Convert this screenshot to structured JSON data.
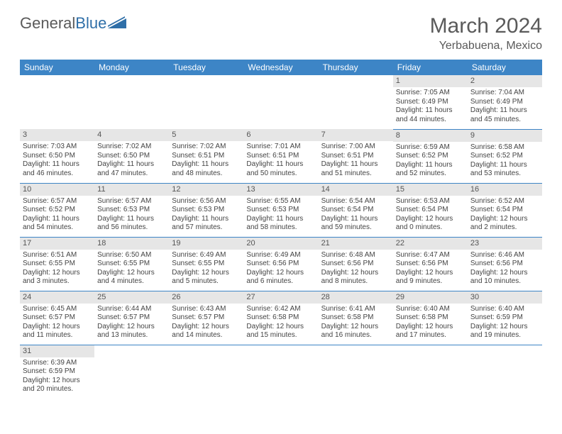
{
  "logo": {
    "text_gray": "General",
    "text_blue": "Blue"
  },
  "title": "March 2024",
  "location": "Yerbabuena, Mexico",
  "colors": {
    "header_bg": "#3d85c6",
    "header_text": "#ffffff",
    "daynum_bg": "#e6e6e6",
    "row_border": "#3d85c6",
    "logo_gray": "#5a5a5a",
    "logo_blue": "#2f6fa8"
  },
  "day_headers": [
    "Sunday",
    "Monday",
    "Tuesday",
    "Wednesday",
    "Thursday",
    "Friday",
    "Saturday"
  ],
  "weeks": [
    [
      null,
      null,
      null,
      null,
      null,
      {
        "n": "1",
        "sunrise": "7:05 AM",
        "sunset": "6:49 PM",
        "daylight": "11 hours and 44 minutes."
      },
      {
        "n": "2",
        "sunrise": "7:04 AM",
        "sunset": "6:49 PM",
        "daylight": "11 hours and 45 minutes."
      }
    ],
    [
      {
        "n": "3",
        "sunrise": "7:03 AM",
        "sunset": "6:50 PM",
        "daylight": "11 hours and 46 minutes."
      },
      {
        "n": "4",
        "sunrise": "7:02 AM",
        "sunset": "6:50 PM",
        "daylight": "11 hours and 47 minutes."
      },
      {
        "n": "5",
        "sunrise": "7:02 AM",
        "sunset": "6:51 PM",
        "daylight": "11 hours and 48 minutes."
      },
      {
        "n": "6",
        "sunrise": "7:01 AM",
        "sunset": "6:51 PM",
        "daylight": "11 hours and 50 minutes."
      },
      {
        "n": "7",
        "sunrise": "7:00 AM",
        "sunset": "6:51 PM",
        "daylight": "11 hours and 51 minutes."
      },
      {
        "n": "8",
        "sunrise": "6:59 AM",
        "sunset": "6:52 PM",
        "daylight": "11 hours and 52 minutes."
      },
      {
        "n": "9",
        "sunrise": "6:58 AM",
        "sunset": "6:52 PM",
        "daylight": "11 hours and 53 minutes."
      }
    ],
    [
      {
        "n": "10",
        "sunrise": "6:57 AM",
        "sunset": "6:52 PM",
        "daylight": "11 hours and 54 minutes."
      },
      {
        "n": "11",
        "sunrise": "6:57 AM",
        "sunset": "6:53 PM",
        "daylight": "11 hours and 56 minutes."
      },
      {
        "n": "12",
        "sunrise": "6:56 AM",
        "sunset": "6:53 PM",
        "daylight": "11 hours and 57 minutes."
      },
      {
        "n": "13",
        "sunrise": "6:55 AM",
        "sunset": "6:53 PM",
        "daylight": "11 hours and 58 minutes."
      },
      {
        "n": "14",
        "sunrise": "6:54 AM",
        "sunset": "6:54 PM",
        "daylight": "11 hours and 59 minutes."
      },
      {
        "n": "15",
        "sunrise": "6:53 AM",
        "sunset": "6:54 PM",
        "daylight": "12 hours and 0 minutes."
      },
      {
        "n": "16",
        "sunrise": "6:52 AM",
        "sunset": "6:54 PM",
        "daylight": "12 hours and 2 minutes."
      }
    ],
    [
      {
        "n": "17",
        "sunrise": "6:51 AM",
        "sunset": "6:55 PM",
        "daylight": "12 hours and 3 minutes."
      },
      {
        "n": "18",
        "sunrise": "6:50 AM",
        "sunset": "6:55 PM",
        "daylight": "12 hours and 4 minutes."
      },
      {
        "n": "19",
        "sunrise": "6:49 AM",
        "sunset": "6:55 PM",
        "daylight": "12 hours and 5 minutes."
      },
      {
        "n": "20",
        "sunrise": "6:49 AM",
        "sunset": "6:56 PM",
        "daylight": "12 hours and 6 minutes."
      },
      {
        "n": "21",
        "sunrise": "6:48 AM",
        "sunset": "6:56 PM",
        "daylight": "12 hours and 8 minutes."
      },
      {
        "n": "22",
        "sunrise": "6:47 AM",
        "sunset": "6:56 PM",
        "daylight": "12 hours and 9 minutes."
      },
      {
        "n": "23",
        "sunrise": "6:46 AM",
        "sunset": "6:56 PM",
        "daylight": "12 hours and 10 minutes."
      }
    ],
    [
      {
        "n": "24",
        "sunrise": "6:45 AM",
        "sunset": "6:57 PM",
        "daylight": "12 hours and 11 minutes."
      },
      {
        "n": "25",
        "sunrise": "6:44 AM",
        "sunset": "6:57 PM",
        "daylight": "12 hours and 13 minutes."
      },
      {
        "n": "26",
        "sunrise": "6:43 AM",
        "sunset": "6:57 PM",
        "daylight": "12 hours and 14 minutes."
      },
      {
        "n": "27",
        "sunrise": "6:42 AM",
        "sunset": "6:58 PM",
        "daylight": "12 hours and 15 minutes."
      },
      {
        "n": "28",
        "sunrise": "6:41 AM",
        "sunset": "6:58 PM",
        "daylight": "12 hours and 16 minutes."
      },
      {
        "n": "29",
        "sunrise": "6:40 AM",
        "sunset": "6:58 PM",
        "daylight": "12 hours and 17 minutes."
      },
      {
        "n": "30",
        "sunrise": "6:40 AM",
        "sunset": "6:59 PM",
        "daylight": "12 hours and 19 minutes."
      }
    ],
    [
      {
        "n": "31",
        "sunrise": "6:39 AM",
        "sunset": "6:59 PM",
        "daylight": "12 hours and 20 minutes."
      },
      null,
      null,
      null,
      null,
      null,
      null
    ]
  ],
  "labels": {
    "sunrise": "Sunrise: ",
    "sunset": "Sunset: ",
    "daylight": "Daylight: "
  }
}
